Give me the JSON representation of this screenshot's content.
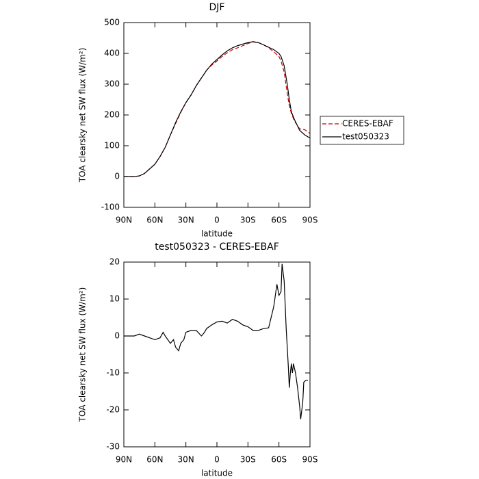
{
  "chart_data": [
    {
      "type": "line",
      "title": "DJF",
      "xlabel": "latitude",
      "ylabel": "TOA clearsky net SW flux (W/m²)",
      "x": [
        90,
        85,
        80,
        75,
        70,
        65,
        60,
        55,
        50,
        45,
        40,
        35,
        30,
        25,
        20,
        15,
        10,
        5,
        0,
        -5,
        -10,
        -15,
        -20,
        -25,
        -30,
        -35,
        -40,
        -45,
        -50,
        -55,
        -60,
        -62,
        -65,
        -68,
        -70,
        -72,
        -75,
        -80,
        -85,
        -90
      ],
      "series": [
        {
          "name": "CERES-EBAF",
          "color": "#cc0000",
          "line_style": "dashed",
          "values": [
            0,
            0,
            0,
            2,
            10,
            25,
            40,
            65,
            95,
            135,
            172,
            208,
            240,
            265,
            295,
            320,
            345,
            362,
            375,
            390,
            402,
            412,
            418,
            425,
            432,
            437,
            435,
            428,
            418,
            405,
            390,
            375,
            340,
            270,
            230,
            205,
            180,
            155,
            152,
            140
          ]
        },
        {
          "name": "test050323",
          "color": "#000000",
          "line_style": "solid",
          "values": [
            0,
            0,
            0,
            2,
            10,
            25,
            40,
            65,
            95,
            135,
            175,
            210,
            240,
            265,
            295,
            320,
            345,
            365,
            380,
            395,
            408,
            418,
            425,
            430,
            435,
            438,
            435,
            428,
            420,
            412,
            400,
            390,
            360,
            300,
            250,
            210,
            185,
            150,
            135,
            125
          ]
        }
      ],
      "xlim": [
        90,
        -90
      ],
      "xticks": [
        {
          "value": 90,
          "label": "90N"
        },
        {
          "value": 60,
          "label": "60N"
        },
        {
          "value": 30,
          "label": "30N"
        },
        0,
        {
          "value": -30,
          "label": "30S"
        },
        {
          "value": -60,
          "label": "60S"
        },
        {
          "value": -90,
          "label": "90S"
        }
      ],
      "ylim": [
        -100,
        500
      ],
      "yticks": [
        -100,
        0,
        100,
        200,
        300,
        400,
        500
      ],
      "legend": "right"
    },
    {
      "type": "line",
      "title": "test050323 - CERES-EBAF",
      "xlabel": "latitude",
      "ylabel": "TOA clearsky net SW flux (W/m²)",
      "x": [
        90,
        85,
        80,
        75,
        70,
        65,
        60,
        55,
        52,
        50,
        45,
        42,
        40,
        37,
        35,
        32,
        30,
        25,
        20,
        15,
        12,
        10,
        5,
        0,
        -5,
        -10,
        -15,
        -20,
        -25,
        -30,
        -35,
        -40,
        -45,
        -50,
        -55,
        -58,
        -60,
        -62,
        -63,
        -65,
        -67,
        -69,
        -70,
        -71,
        -72,
        -73,
        -74,
        -76,
        -78,
        -80,
        -81,
        -83,
        -84,
        -86,
        -88
      ],
      "values": [
        0,
        0,
        0,
        0.5,
        0,
        -0.5,
        -1,
        -0.5,
        1,
        0,
        -2,
        -1,
        -3,
        -4,
        -2,
        -1,
        1,
        1.5,
        1.5,
        0,
        1,
        2,
        3,
        3.8,
        4,
        3.5,
        4.5,
        4,
        3,
        2.5,
        1.5,
        1.5,
        2,
        2.2,
        8,
        14,
        11,
        12,
        19.5,
        15,
        2,
        -8,
        -14,
        -10,
        -7.5,
        -10,
        -7.5,
        -10,
        -14,
        -19,
        -22.5,
        -18,
        -12.5,
        -12,
        -12
      ],
      "color": "#000000",
      "line_style": "solid",
      "xlim": [
        90,
        -90
      ],
      "xticks": [
        {
          "value": 90,
          "label": "90N"
        },
        {
          "value": 60,
          "label": "60N"
        },
        {
          "value": 30,
          "label": "30N"
        },
        0,
        {
          "value": -30,
          "label": "30S"
        },
        {
          "value": -60,
          "label": "60S"
        },
        {
          "value": -90,
          "label": "90S"
        }
      ],
      "ylim": [
        -30,
        20
      ],
      "yticks": [
        -30,
        -20,
        -10,
        0,
        10,
        20
      ]
    }
  ]
}
